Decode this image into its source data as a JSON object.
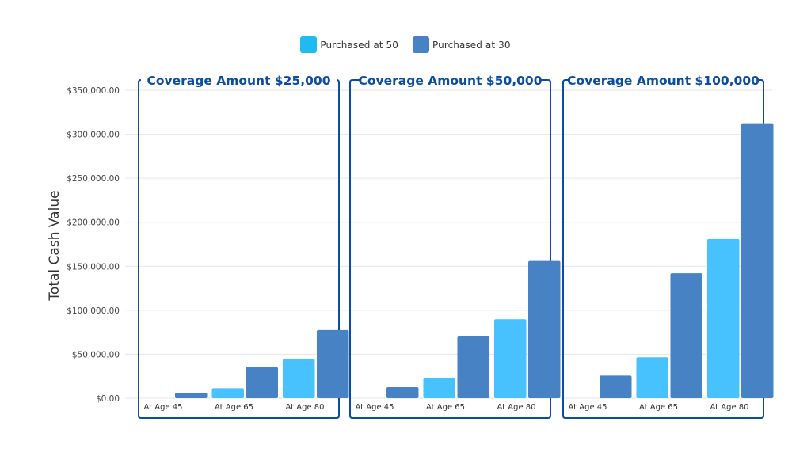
{
  "chart_data": {
    "type": "bar",
    "ylabel": "Total Cash Value",
    "xlabel": "",
    "ylim": [
      0,
      350000
    ],
    "yticks": [
      0,
      50000,
      100000,
      150000,
      200000,
      250000,
      300000,
      350000
    ],
    "ytick_labels": [
      "$0.00",
      "$50,000.00",
      "$100,000.00",
      "$150,000.00",
      "$200,000.00",
      "$250,000.00",
      "$300,000.00",
      "$350,000.00"
    ],
    "grid": true,
    "legend_position": "top-center",
    "legend": [
      {
        "name": "Purchased at 50",
        "color": "#47C2FF"
      },
      {
        "name": "Purchased at 30",
        "color": "#4682C4"
      }
    ],
    "categories": [
      "At Age 45",
      "At Age 65",
      "At Age 80"
    ],
    "panels": [
      {
        "title": "Coverage Amount $25,000",
        "series": [
          {
            "name": "Purchased at 50",
            "values": [
              0,
              11400,
              44600
            ]
          },
          {
            "name": "Purchased at 30",
            "values": [
              6300,
              35300,
              77500
            ]
          }
        ]
      },
      {
        "title": "Coverage Amount $50,000",
        "series": [
          {
            "name": "Purchased at 50",
            "values": [
              0,
              22700,
              89800
            ]
          },
          {
            "name": "Purchased at 30",
            "values": [
              12600,
              70300,
              156000
            ]
          }
        ]
      },
      {
        "title": "Coverage Amount $100,000",
        "series": [
          {
            "name": "Purchased at 50",
            "values": [
              0,
              46600,
              181000
            ]
          },
          {
            "name": "Purchased at 30",
            "values": [
              25800,
              142000,
              312600
            ]
          }
        ]
      }
    ],
    "frame_color": "#0B4DA2",
    "title_color": "#0B4DA2"
  }
}
